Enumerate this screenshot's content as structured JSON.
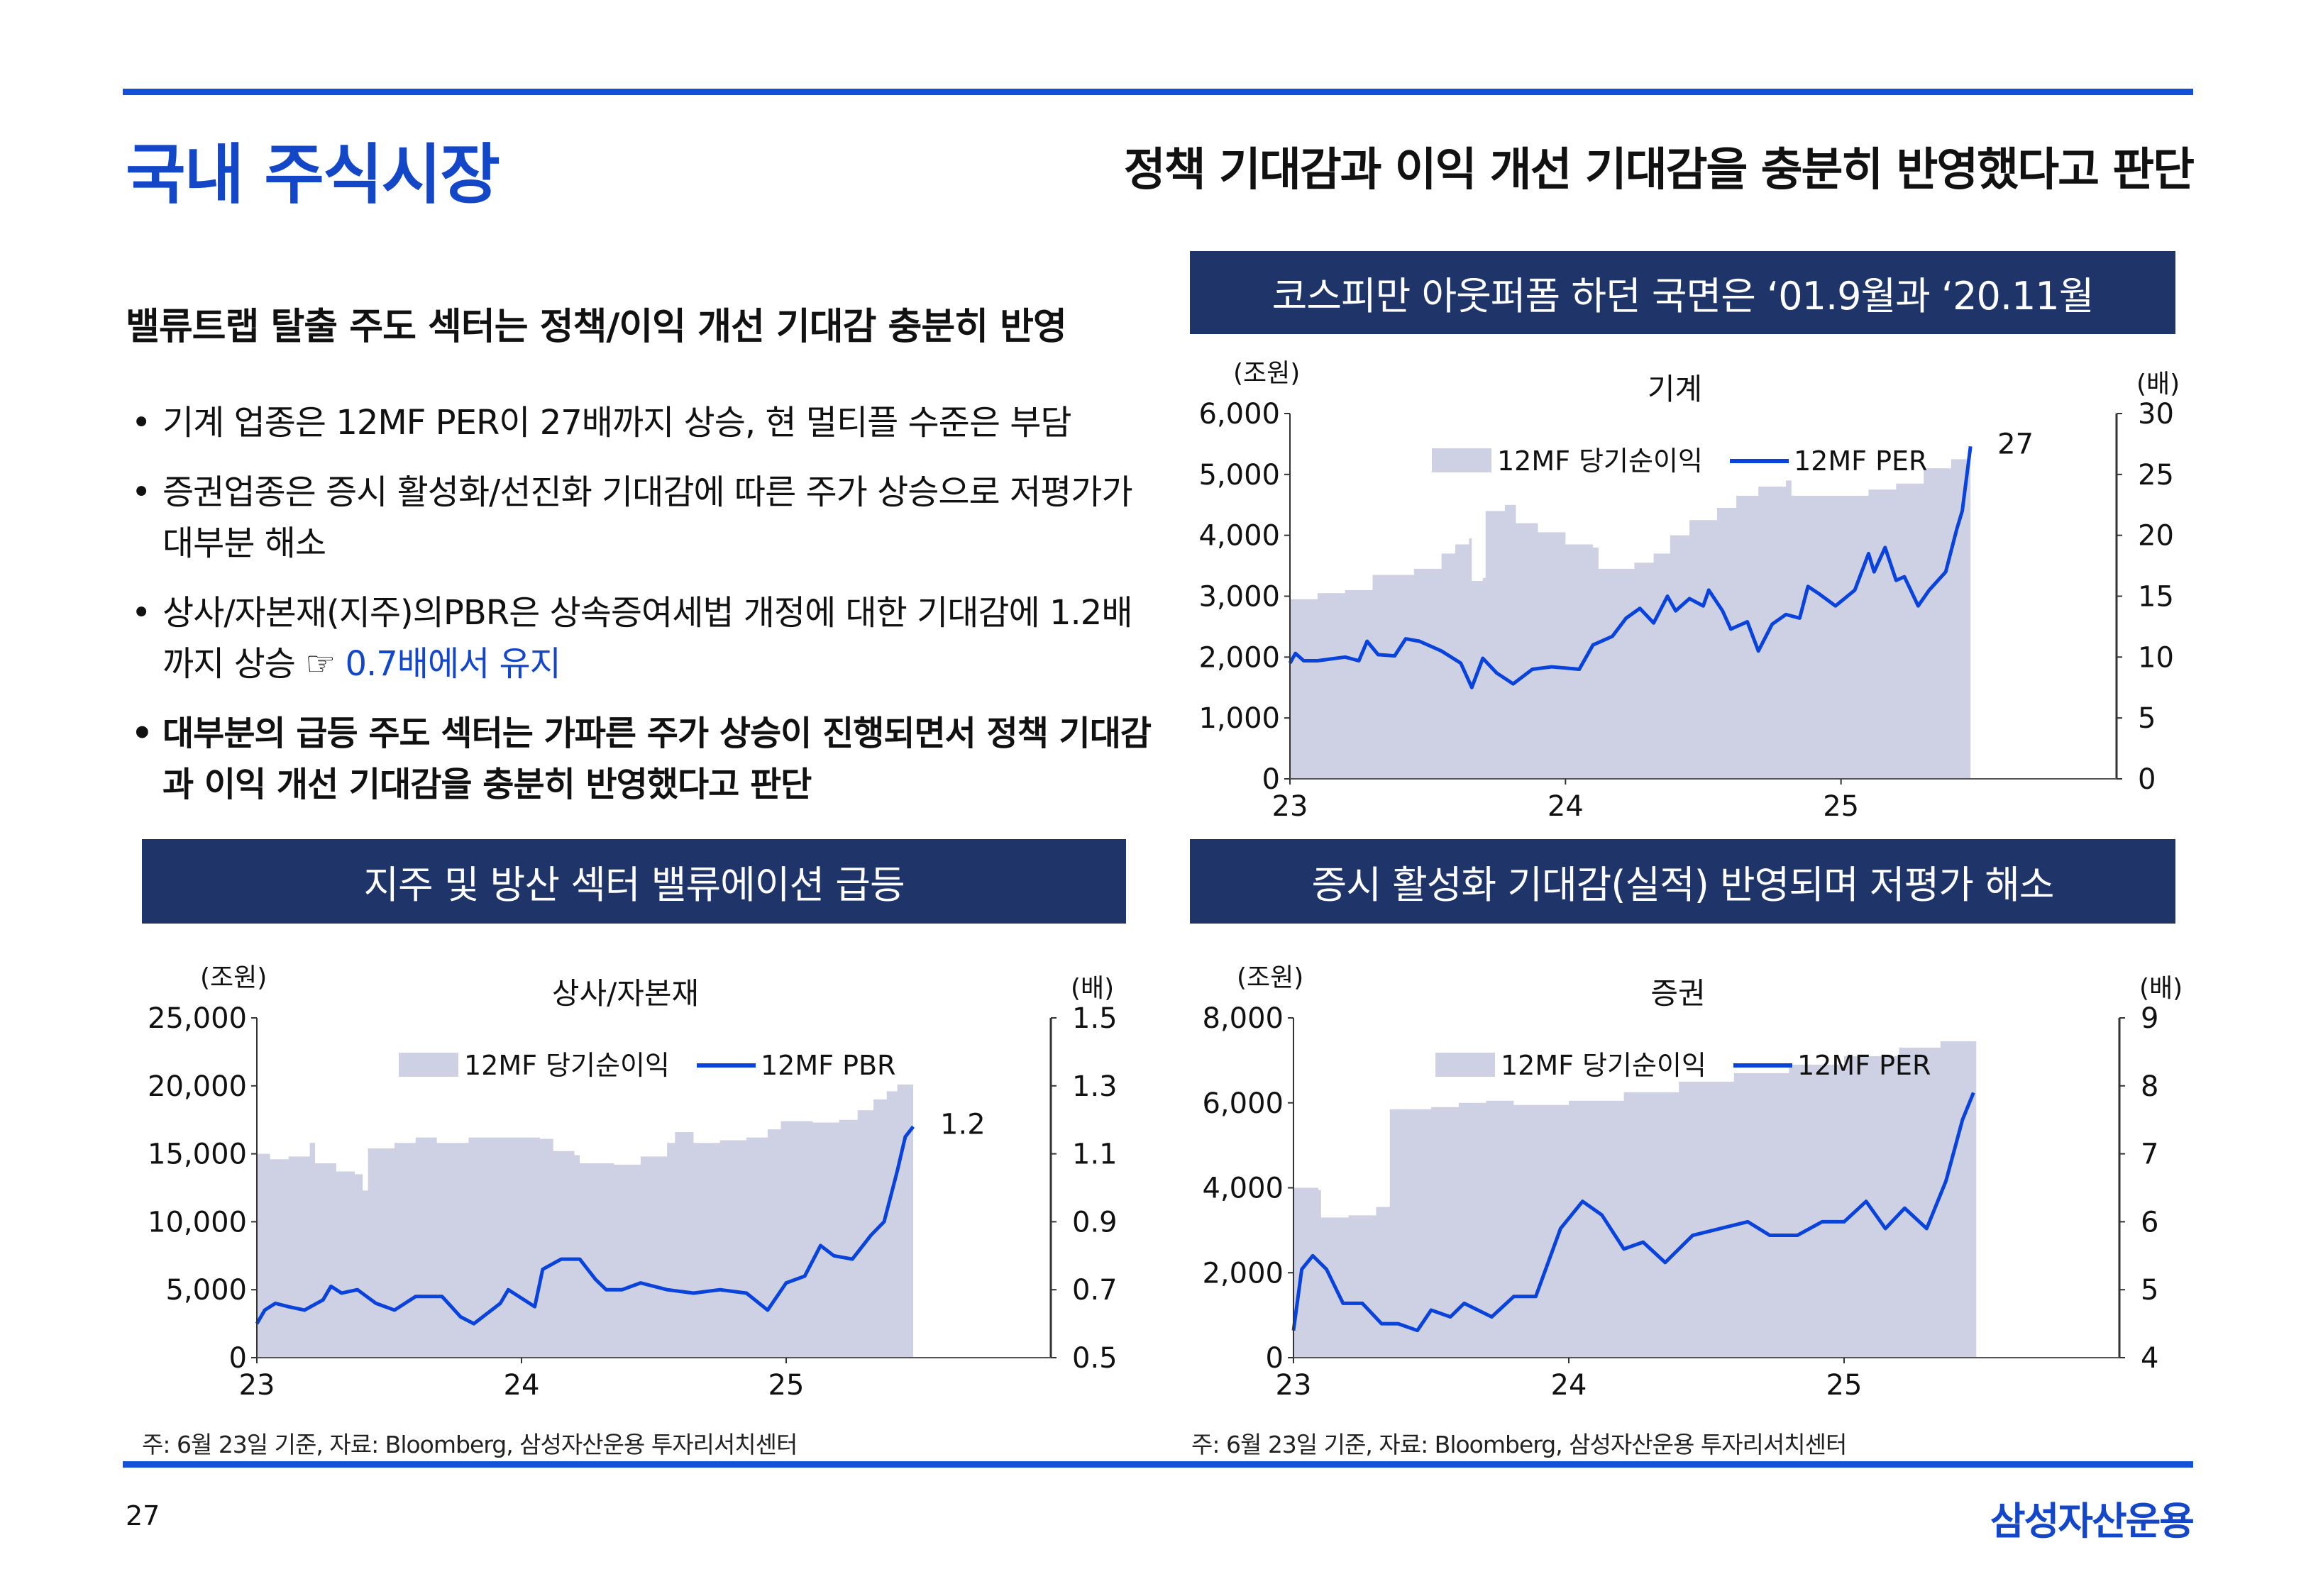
{
  "header": {
    "title": "국내 주식시장",
    "headline": "정책 기대감과 이익 개선 기대감을 충분히 반영했다고 판단"
  },
  "left": {
    "subhead": "밸류트랩 탈출 주도 섹터는 정책/이익 개선 기대감 충분히 반영",
    "bullets": [
      {
        "text": "기계 업종은 12MF PER이 27배까지 상승, 현 멀티플 수준은 부담"
      },
      {
        "text": "증권업종은 증시 활성화/선진화 기대감에 따른 주가 상승으로 저평가가 대부분 해소"
      },
      {
        "text": "상사/자본재(지주)의PBR은 상속증여세법 개정에 대한 기대감에 1.2배까지  상승 ☞ ",
        "highlight": "0.7배에서 유지"
      },
      {
        "text": "대부분의 급등 주도 섹터는 가파른 주가 상승이 진행되면서 정책 기대감과 이익 개선 기대감을 충분히 반영했다고 판단"
      }
    ]
  },
  "boxes": {
    "top_right": "코스피만 아웃퍼폼 하던 국면은 ‘01.9월과 ‘20.11월",
    "bottom_left": "지주 및 방산 섹터 밸류에이션 급등",
    "bottom_right": "증시 활성화 기대감(실적) 반영되며 저평가 해소"
  },
  "footnotes": {
    "left": "주: 6월 23일 기준, 자료: Bloomberg, 삼성자산운용 투자리서치센터",
    "right": "주: 6월 23일 기준, 자료: Bloomberg, 삼성자산운용 투자리서치센터"
  },
  "footer": {
    "page": "27",
    "logo": "삼성자산운용"
  },
  "colors": {
    "area": "#cdd1e3",
    "line": "#0a43dc",
    "box": "#1f3468",
    "accent": "#1446c8"
  },
  "chart_data": [
    {
      "type": "area+line",
      "title": "기계",
      "left_unit": "(조원)",
      "right_unit": "(배)",
      "legend": [
        "12MF 당기순이익",
        "12MF PER"
      ],
      "end_label": "27",
      "xticks": [
        "23",
        "24",
        "25"
      ],
      "xlim": [
        23,
        26
      ],
      "ylim": [
        0,
        6000
      ],
      "yticks": [
        "0",
        "1,000",
        "2,000",
        "3,000",
        "4,000",
        "5,000",
        "6,000"
      ],
      "y2lim": [
        0,
        30
      ],
      "y2ticks": [
        "0",
        "5",
        "10",
        "15",
        "20",
        "25",
        "30"
      ],
      "area": [
        [
          23.0,
          2950
        ],
        [
          23.1,
          3050
        ],
        [
          23.2,
          3100
        ],
        [
          23.3,
          3350
        ],
        [
          23.45,
          3450
        ],
        [
          23.55,
          3700
        ],
        [
          23.6,
          3850
        ],
        [
          23.65,
          3950
        ],
        [
          23.66,
          3250
        ],
        [
          23.7,
          3300
        ],
        [
          23.71,
          4400
        ],
        [
          23.78,
          4500
        ],
        [
          23.82,
          4200
        ],
        [
          23.9,
          4050
        ],
        [
          24.0,
          3850
        ],
        [
          24.1,
          3800
        ],
        [
          24.12,
          3450
        ],
        [
          24.25,
          3550
        ],
        [
          24.32,
          3700
        ],
        [
          24.38,
          4000
        ],
        [
          24.45,
          4250
        ],
        [
          24.55,
          4450
        ],
        [
          24.62,
          4650
        ],
        [
          24.7,
          4800
        ],
        [
          24.8,
          4900
        ],
        [
          24.82,
          4650
        ],
        [
          24.95,
          4650
        ],
        [
          25.1,
          4750
        ],
        [
          25.2,
          4850
        ],
        [
          25.3,
          5100
        ],
        [
          25.4,
          5250
        ],
        [
          25.47,
          5300
        ]
      ],
      "line": [
        [
          23.0,
          9.5
        ],
        [
          23.02,
          10.3
        ],
        [
          23.05,
          9.7
        ],
        [
          23.1,
          9.7
        ],
        [
          23.2,
          10.0
        ],
        [
          23.25,
          9.7
        ],
        [
          23.28,
          11.3
        ],
        [
          23.32,
          10.2
        ],
        [
          23.38,
          10.1
        ],
        [
          23.42,
          11.5
        ],
        [
          23.47,
          11.3
        ],
        [
          23.55,
          10.5
        ],
        [
          23.62,
          9.5
        ],
        [
          23.66,
          7.5
        ],
        [
          23.7,
          9.9
        ],
        [
          23.75,
          8.7
        ],
        [
          23.81,
          7.8
        ],
        [
          23.88,
          9.0
        ],
        [
          23.95,
          9.2
        ],
        [
          24.05,
          9.0
        ],
        [
          24.1,
          11.0
        ],
        [
          24.17,
          11.7
        ],
        [
          24.22,
          13.2
        ],
        [
          24.27,
          14.0
        ],
        [
          24.32,
          12.8
        ],
        [
          24.37,
          15.0
        ],
        [
          24.4,
          13.8
        ],
        [
          24.45,
          14.8
        ],
        [
          24.5,
          14.2
        ],
        [
          24.52,
          15.5
        ],
        [
          24.57,
          13.8
        ],
        [
          24.6,
          12.3
        ],
        [
          24.66,
          12.9
        ],
        [
          24.7,
          10.5
        ],
        [
          24.75,
          12.7
        ],
        [
          24.8,
          13.5
        ],
        [
          24.85,
          13.2
        ],
        [
          24.88,
          15.8
        ],
        [
          24.92,
          15.2
        ],
        [
          24.98,
          14.2
        ],
        [
          25.05,
          15.5
        ],
        [
          25.1,
          18.5
        ],
        [
          25.12,
          17.0
        ],
        [
          25.16,
          19.0
        ],
        [
          25.2,
          16.3
        ],
        [
          25.23,
          16.6
        ],
        [
          25.28,
          14.2
        ],
        [
          25.32,
          15.5
        ],
        [
          25.38,
          17.0
        ],
        [
          25.42,
          20.5
        ],
        [
          25.44,
          22.0
        ],
        [
          25.47,
          27.3
        ]
      ]
    },
    {
      "type": "area+line",
      "title": "상사/자본재",
      "left_unit": "(조원)",
      "right_unit": "(배)",
      "legend": [
        "12MF 당기순이익",
        "12MF PBR"
      ],
      "end_label": "1.2",
      "xticks": [
        "23",
        "24",
        "25"
      ],
      "xlim": [
        23,
        26
      ],
      "ylim": [
        0,
        25000
      ],
      "yticks": [
        "0",
        "5,000",
        "10,000",
        "15,000",
        "20,000",
        "25,000"
      ],
      "y2lim": [
        0.5,
        1.5
      ],
      "y2ticks": [
        "0.5",
        "0.7",
        "0.9",
        "1.1",
        "1.3",
        "1.5"
      ],
      "area": [
        [
          23.0,
          15000
        ],
        [
          23.05,
          14600
        ],
        [
          23.12,
          14800
        ],
        [
          23.2,
          15800
        ],
        [
          23.22,
          14300
        ],
        [
          23.3,
          13700
        ],
        [
          23.37,
          13500
        ],
        [
          23.4,
          12300
        ],
        [
          23.42,
          15400
        ],
        [
          23.52,
          15800
        ],
        [
          23.6,
          16200
        ],
        [
          23.68,
          15800
        ],
        [
          23.8,
          16200
        ],
        [
          23.95,
          16200
        ],
        [
          24.07,
          16100
        ],
        [
          24.12,
          15200
        ],
        [
          24.2,
          14900
        ],
        [
          24.22,
          14300
        ],
        [
          24.35,
          14200
        ],
        [
          24.45,
          14800
        ],
        [
          24.55,
          15800
        ],
        [
          24.58,
          16600
        ],
        [
          24.65,
          15800
        ],
        [
          24.75,
          16000
        ],
        [
          24.85,
          16200
        ],
        [
          24.93,
          16800
        ],
        [
          24.98,
          17400
        ],
        [
          25.1,
          17300
        ],
        [
          25.2,
          17500
        ],
        [
          25.27,
          18200
        ],
        [
          25.33,
          19000
        ],
        [
          25.38,
          19600
        ],
        [
          25.42,
          20100
        ],
        [
          25.48,
          20100
        ]
      ],
      "line": [
        [
          23.0,
          0.6
        ],
        [
          23.03,
          0.64
        ],
        [
          23.07,
          0.66
        ],
        [
          23.12,
          0.65
        ],
        [
          23.18,
          0.64
        ],
        [
          23.25,
          0.67
        ],
        [
          23.28,
          0.71
        ],
        [
          23.32,
          0.69
        ],
        [
          23.38,
          0.7
        ],
        [
          23.45,
          0.66
        ],
        [
          23.52,
          0.64
        ],
        [
          23.6,
          0.68
        ],
        [
          23.7,
          0.68
        ],
        [
          23.77,
          0.62
        ],
        [
          23.82,
          0.6
        ],
        [
          23.92,
          0.66
        ],
        [
          23.95,
          0.7
        ],
        [
          24.05,
          0.65
        ],
        [
          24.08,
          0.76
        ],
        [
          24.15,
          0.79
        ],
        [
          24.22,
          0.79
        ],
        [
          24.28,
          0.73
        ],
        [
          24.32,
          0.7
        ],
        [
          24.38,
          0.7
        ],
        [
          24.45,
          0.72
        ],
        [
          24.55,
          0.7
        ],
        [
          24.65,
          0.69
        ],
        [
          24.75,
          0.7
        ],
        [
          24.85,
          0.69
        ],
        [
          24.93,
          0.64
        ],
        [
          25.0,
          0.72
        ],
        [
          25.07,
          0.74
        ],
        [
          25.13,
          0.83
        ],
        [
          25.18,
          0.8
        ],
        [
          25.25,
          0.79
        ],
        [
          25.32,
          0.86
        ],
        [
          25.37,
          0.9
        ],
        [
          25.42,
          1.05
        ],
        [
          25.45,
          1.15
        ],
        [
          25.48,
          1.18
        ]
      ]
    },
    {
      "type": "area+line",
      "title": "증권",
      "left_unit": "(조원)",
      "right_unit": "(배)",
      "legend": [
        "12MF 당기순이익",
        "12MF PER"
      ],
      "end_label": "",
      "xticks": [
        "23",
        "24",
        "25"
      ],
      "xlim": [
        23,
        26
      ],
      "ylim": [
        0,
        8000
      ],
      "yticks": [
        "0",
        "2,000",
        "4,000",
        "6,000",
        "8,000"
      ],
      "y2lim": [
        4,
        9
      ],
      "y2ticks": [
        "4",
        "5",
        "6",
        "7",
        "8",
        "9"
      ],
      "area": [
        [
          23.0,
          4000
        ],
        [
          23.09,
          3950
        ],
        [
          23.1,
          3300
        ],
        [
          23.2,
          3350
        ],
        [
          23.3,
          3550
        ],
        [
          23.35,
          5850
        ],
        [
          23.5,
          5900
        ],
        [
          23.6,
          6000
        ],
        [
          23.7,
          6050
        ],
        [
          23.8,
          5950
        ],
        [
          24.0,
          6050
        ],
        [
          24.2,
          6250
        ],
        [
          24.4,
          6500
        ],
        [
          24.6,
          6700
        ],
        [
          24.8,
          6900
        ],
        [
          25.0,
          7100
        ],
        [
          25.2,
          7300
        ],
        [
          25.35,
          7450
        ],
        [
          25.48,
          7500
        ]
      ],
      "line": [
        [
          23.0,
          4.4
        ],
        [
          23.03,
          5.3
        ],
        [
          23.07,
          5.5
        ],
        [
          23.12,
          5.3
        ],
        [
          23.18,
          4.8
        ],
        [
          23.25,
          4.8
        ],
        [
          23.32,
          4.5
        ],
        [
          23.38,
          4.5
        ],
        [
          23.45,
          4.4
        ],
        [
          23.5,
          4.7
        ],
        [
          23.57,
          4.6
        ],
        [
          23.62,
          4.8
        ],
        [
          23.72,
          4.6
        ],
        [
          23.8,
          4.9
        ],
        [
          23.88,
          4.9
        ],
        [
          23.97,
          5.9
        ],
        [
          24.05,
          6.3
        ],
        [
          24.12,
          6.1
        ],
        [
          24.2,
          5.6
        ],
        [
          24.27,
          5.7
        ],
        [
          24.35,
          5.4
        ],
        [
          24.45,
          5.8
        ],
        [
          24.55,
          5.9
        ],
        [
          24.65,
          6.0
        ],
        [
          24.73,
          5.8
        ],
        [
          24.83,
          5.8
        ],
        [
          24.92,
          6.0
        ],
        [
          25.0,
          6.0
        ],
        [
          25.08,
          6.3
        ],
        [
          25.15,
          5.9
        ],
        [
          25.22,
          6.2
        ],
        [
          25.3,
          5.9
        ],
        [
          25.37,
          6.6
        ],
        [
          25.43,
          7.5
        ],
        [
          25.47,
          7.9
        ]
      ]
    }
  ]
}
